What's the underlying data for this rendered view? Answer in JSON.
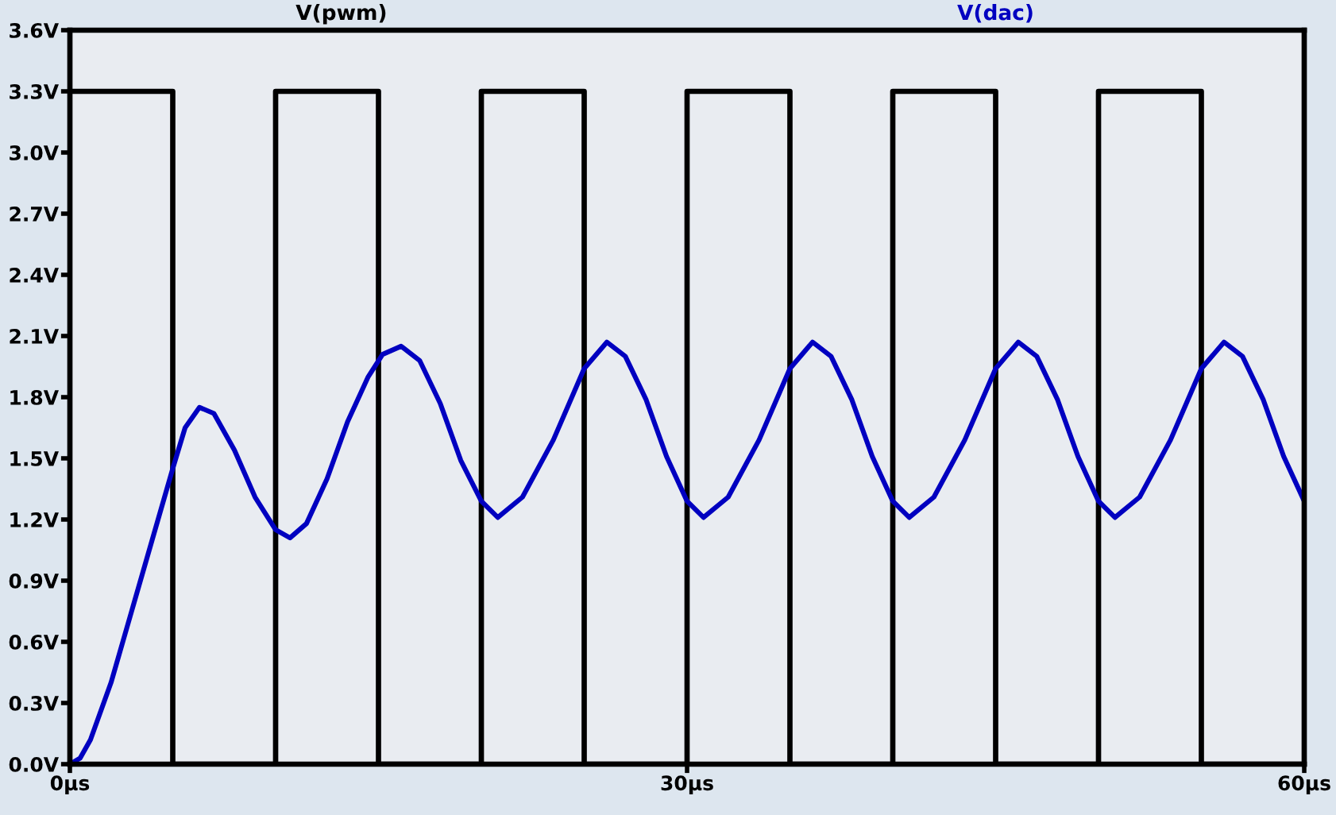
{
  "chart_data": {
    "type": "line",
    "xlim": [
      0,
      60
    ],
    "xticks": [
      {
        "value": 0,
        "label": "0µs"
      },
      {
        "value": 30,
        "label": "30µs"
      },
      {
        "value": 60,
        "label": "60µs"
      }
    ],
    "ylim": [
      0,
      3.6
    ],
    "yticks": [
      {
        "value": 0,
        "label": "0.0V"
      },
      {
        "value": 0.3,
        "label": "0.3V"
      },
      {
        "value": 0.6,
        "label": "0.6V"
      },
      {
        "value": 0.9,
        "label": "0.9V"
      },
      {
        "value": 1.2,
        "label": "1.2V"
      },
      {
        "value": 1.5,
        "label": "1.5V"
      },
      {
        "value": 1.8,
        "label": "1.8V"
      },
      {
        "value": 2.1,
        "label": "2.1V"
      },
      {
        "value": 2.4,
        "label": "2.4V"
      },
      {
        "value": 2.7,
        "label": "2.7V"
      },
      {
        "value": 3.0,
        "label": "3.0V"
      },
      {
        "value": 3.3,
        "label": "3.3V"
      },
      {
        "value": 3.6,
        "label": "3.6V"
      }
    ],
    "grid": false,
    "legend": "top",
    "marker": "none",
    "line_style": "solid",
    "series": [
      {
        "name": "V(pwm)",
        "type": "step",
        "color": "#000000",
        "x": [
          0,
          5,
          10,
          15,
          20,
          25,
          30,
          35,
          40,
          45,
          50,
          55,
          60
        ],
        "values": [
          3.3,
          0,
          3.3,
          0,
          3.3,
          0,
          3.3,
          0,
          3.3,
          0,
          3.3,
          0,
          0
        ]
      },
      {
        "name": "V(dac)",
        "color": "#0000c0",
        "x": [
          0,
          0.5,
          1,
          2,
          3,
          4,
          5,
          5.6,
          6.3,
          7,
          8,
          9,
          10,
          10.7,
          11.5,
          12.5,
          13.5,
          14.5,
          15.2,
          16.1,
          17,
          18,
          19,
          20,
          20.8,
          22,
          23.5,
          25,
          26.1,
          27,
          28,
          29,
          30,
          30.8,
          32,
          33.5,
          35,
          36.1,
          37,
          38,
          39,
          40,
          40.8,
          42,
          43.5,
          45,
          46.1,
          47,
          48,
          49,
          50,
          50.8,
          52,
          53.5,
          55,
          56.1,
          57,
          58,
          59,
          60
        ],
        "values": [
          0,
          0.03,
          0.12,
          0.4,
          0.75,
          1.1,
          1.45,
          1.65,
          1.75,
          1.72,
          1.54,
          1.31,
          1.15,
          1.11,
          1.18,
          1.4,
          1.68,
          1.9,
          2.01,
          2.05,
          1.98,
          1.77,
          1.49,
          1.29,
          1.21,
          1.31,
          1.59,
          1.94,
          2.07,
          2.0,
          1.79,
          1.51,
          1.29,
          1.21,
          1.31,
          1.59,
          1.94,
          2.07,
          2.0,
          1.79,
          1.51,
          1.29,
          1.21,
          1.31,
          1.59,
          1.94,
          2.07,
          2.0,
          1.79,
          1.51,
          1.29,
          1.21,
          1.31,
          1.59,
          1.94,
          2.07,
          2.0,
          1.79,
          1.51,
          1.29
        ]
      }
    ]
  }
}
